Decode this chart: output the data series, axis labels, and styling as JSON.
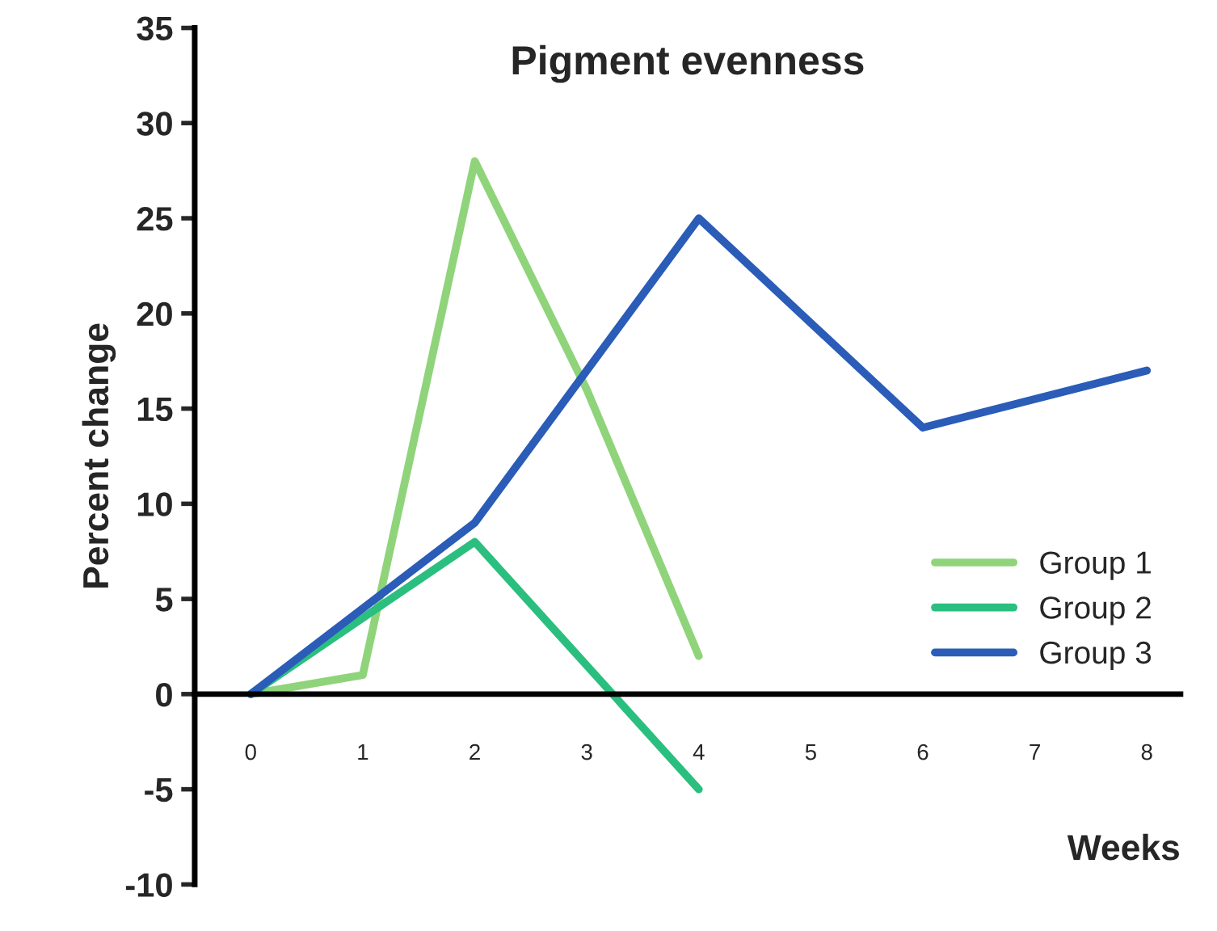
{
  "chart_data": {
    "type": "line",
    "title": "Pigment evenness",
    "xlabel": "Weeks",
    "ylabel": "Percent change",
    "xlim": [
      -0.5,
      8.3
    ],
    "xticks": [
      0,
      1,
      2,
      3,
      4,
      5,
      6,
      7,
      8
    ],
    "ylim": [
      -10,
      35
    ],
    "yticks": [
      -10,
      -5,
      0,
      5,
      10,
      15,
      20,
      25,
      30,
      35
    ],
    "grid": false,
    "legend": "right",
    "marker": "none",
    "line_style": "solid",
    "series": [
      {
        "name": "Group 1",
        "color": "#8fd47a",
        "x": [
          0,
          1,
          2,
          3,
          4
        ],
        "values": [
          0,
          1,
          28,
          16,
          2
        ]
      },
      {
        "name": "Group 2",
        "color": "#2bbf7f",
        "x": [
          0,
          2,
          4
        ],
        "values": [
          0,
          8,
          -5
        ]
      },
      {
        "name": "Group 3",
        "color": "#2a5cb8",
        "x": [
          0,
          2,
          4,
          6,
          8
        ],
        "values": [
          0,
          9,
          25,
          14,
          17
        ]
      }
    ]
  }
}
